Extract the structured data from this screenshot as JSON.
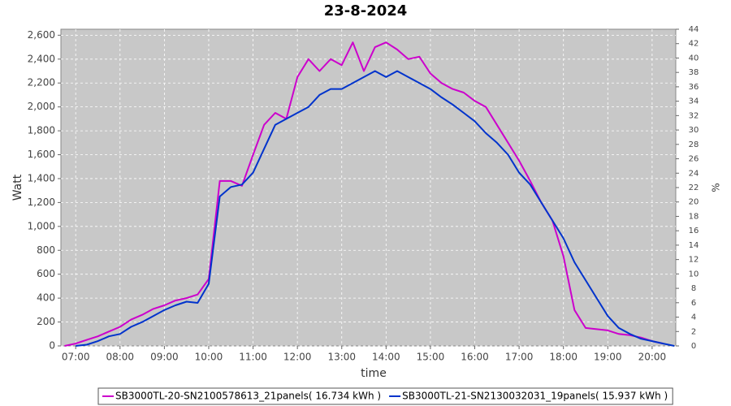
{
  "chart_data": {
    "type": "line",
    "title": "23-8-2024",
    "x_label": "time",
    "y_label": "Watt",
    "y2_label": "%",
    "x": [
      "06:45",
      "07:00",
      "07:15",
      "07:30",
      "07:45",
      "08:00",
      "08:15",
      "08:30",
      "08:45",
      "09:00",
      "09:15",
      "09:30",
      "09:45",
      "10:00",
      "10:15",
      "10:30",
      "10:45",
      "11:00",
      "11:15",
      "11:30",
      "11:45",
      "12:00",
      "12:15",
      "12:30",
      "12:45",
      "13:00",
      "13:15",
      "13:30",
      "13:45",
      "14:00",
      "14:15",
      "14:30",
      "14:45",
      "15:00",
      "15:15",
      "15:30",
      "15:45",
      "16:00",
      "16:15",
      "16:30",
      "16:45",
      "17:00",
      "17:15",
      "17:30",
      "17:45",
      "18:00",
      "18:15",
      "18:30",
      "18:45",
      "19:00",
      "19:15",
      "19:30",
      "19:45",
      "20:00",
      "20:15",
      "20:30"
    ],
    "xlim": [
      "06:40",
      "20:32"
    ],
    "xticks": [
      "07:00",
      "08:00",
      "09:00",
      "10:00",
      "11:00",
      "12:00",
      "13:00",
      "14:00",
      "15:00",
      "16:00",
      "17:00",
      "18:00",
      "19:00",
      "20:00"
    ],
    "series": [
      {
        "name": "SB3000TL-20-SN2100578613_21panels( 16.734 kWh )",
        "color": "#cc00cc",
        "values": [
          0,
          20,
          50,
          80,
          120,
          160,
          220,
          260,
          310,
          340,
          380,
          400,
          430,
          560,
          1380,
          1380,
          1340,
          1600,
          1850,
          1950,
          1900,
          2250,
          2400,
          2300,
          2400,
          2350,
          2540,
          2300,
          2500,
          2540,
          2480,
          2400,
          2420,
          2280,
          2200,
          2150,
          2120,
          2050,
          2000,
          1850,
          1700,
          1550,
          1380,
          1200,
          1050,
          750,
          300,
          150,
          140,
          130,
          100,
          90,
          70,
          40,
          20,
          null
        ]
      },
      {
        "name": "SB3000TL-21-SN2130032031_19panels( 15.937 kWh )",
        "color": "#0033cc",
        "values": [
          null,
          0,
          10,
          40,
          80,
          100,
          160,
          200,
          250,
          300,
          340,
          370,
          360,
          520,
          1250,
          1330,
          1350,
          1450,
          1650,
          1850,
          1900,
          1950,
          2000,
          2100,
          2150,
          2150,
          2200,
          2250,
          2300,
          2250,
          2300,
          2250,
          2200,
          2150,
          2080,
          2020,
          1950,
          1880,
          1780,
          1700,
          1600,
          1450,
          1350,
          1200,
          1050,
          900,
          700,
          550,
          400,
          250,
          150,
          100,
          60,
          40,
          20,
          0
        ]
      }
    ],
    "ylim": [
      0,
      2650
    ],
    "yticks": [
      0,
      200,
      400,
      600,
      800,
      {
        "value": 1000,
        "label": "1,000"
      },
      {
        "value": 1200,
        "label": "1,200"
      },
      {
        "value": 1400,
        "label": "1,400"
      },
      {
        "value": 1600,
        "label": "1,600"
      },
      {
        "value": 1800,
        "label": "1,800"
      },
      {
        "value": 2000,
        "label": "2,000"
      },
      {
        "value": 2200,
        "label": "2,200"
      },
      {
        "value": 2400,
        "label": "2,400"
      },
      {
        "value": 2600,
        "label": "2,600"
      }
    ],
    "y2lim": [
      0,
      44
    ],
    "y2ticks": [
      0,
      2,
      4,
      6,
      8,
      10,
      12,
      14,
      16,
      18,
      20,
      22,
      24,
      26,
      28,
      30,
      32,
      34,
      36,
      38,
      40,
      42,
      44
    ],
    "grid": true,
    "legend": "bottom",
    "background": "#c8c8c8"
  }
}
